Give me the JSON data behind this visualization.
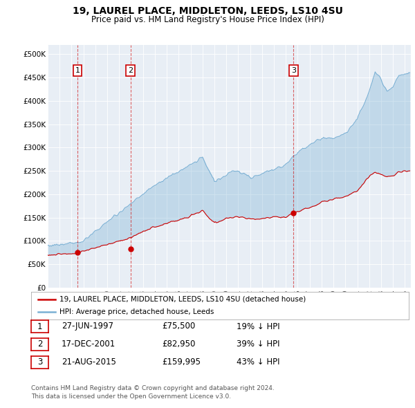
{
  "title": "19, LAUREL PLACE, MIDDLETON, LEEDS, LS10 4SU",
  "subtitle": "Price paid vs. HM Land Registry's House Price Index (HPI)",
  "plot_bg_color": "#e8eef5",
  "hpi_color": "#7ab0d4",
  "price_color": "#cc0000",
  "ylim": [
    0,
    520000
  ],
  "xlim_start": 1995.0,
  "xlim_end": 2025.5,
  "yticks": [
    0,
    50000,
    100000,
    150000,
    200000,
    250000,
    300000,
    350000,
    400000,
    450000,
    500000
  ],
  "ytick_labels": [
    "£0",
    "£50K",
    "£100K",
    "£150K",
    "£200K",
    "£250K",
    "£300K",
    "£350K",
    "£400K",
    "£450K",
    "£500K"
  ],
  "xtick_years": [
    1995,
    1996,
    1997,
    1998,
    1999,
    2000,
    2001,
    2002,
    2003,
    2004,
    2005,
    2006,
    2007,
    2008,
    2009,
    2010,
    2011,
    2012,
    2013,
    2014,
    2015,
    2016,
    2017,
    2018,
    2019,
    2020,
    2021,
    2022,
    2023,
    2024,
    2025
  ],
  "sale_dates_decimal": [
    1997.49,
    2001.96,
    2015.64
  ],
  "sale_prices": [
    75500,
    82950,
    159995
  ],
  "sale_labels": [
    "1",
    "2",
    "3"
  ],
  "legend_entry1": "19, LAUREL PLACE, MIDDLETON, LEEDS, LS10 4SU (detached house)",
  "legend_entry2": "HPI: Average price, detached house, Leeds",
  "table_rows": [
    [
      "1",
      "27-JUN-1997",
      "£75,500",
      "19% ↓ HPI"
    ],
    [
      "2",
      "17-DEC-2001",
      "£82,950",
      "39% ↓ HPI"
    ],
    [
      "3",
      "21-AUG-2015",
      "£159,995",
      "43% ↓ HPI"
    ]
  ],
  "footnote1": "Contains HM Land Registry data © Crown copyright and database right 2024.",
  "footnote2": "This data is licensed under the Open Government Licence v3.0."
}
